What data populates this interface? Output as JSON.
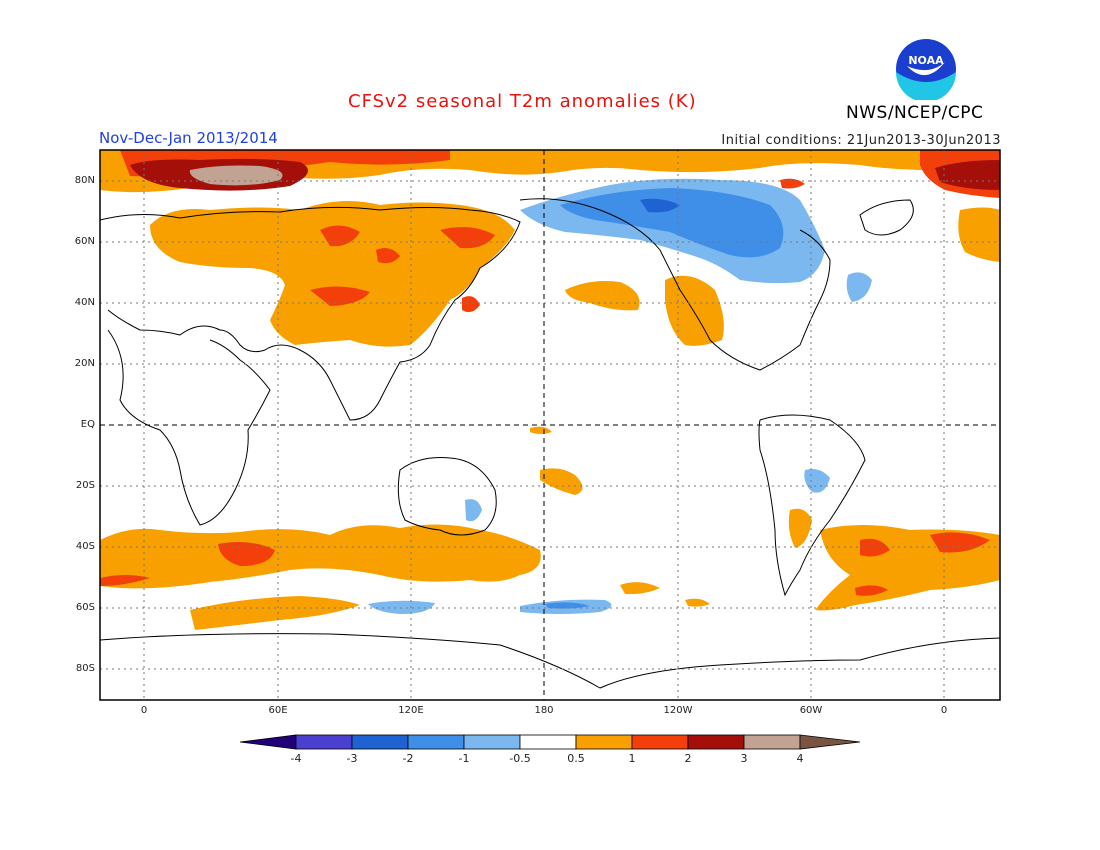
{
  "header": {
    "title": "CFSv2 seasonal T2m anomalies (K)",
    "period": "Nov-Dec-Jan 2013/2014",
    "initial_conditions": "Initial conditions: 21Jun2013-30Jun2013",
    "agency": "NWS/NCEP/CPC",
    "logo_text": "NOAA"
  },
  "map": {
    "lat_labels": [
      "80N",
      "60N",
      "40N",
      "20N",
      "EQ",
      "20S",
      "40S",
      "60S",
      "80S"
    ],
    "lon_labels": [
      "0",
      "60E",
      "120E",
      "180",
      "120W",
      "60W",
      "0"
    ]
  },
  "colorbar": {
    "labels": [
      "-4",
      "-3",
      "-2",
      "-1",
      "-0.5",
      "0.5",
      "1",
      "2",
      "3",
      "4"
    ],
    "colors": {
      "lt_-4": "#22007a",
      "-4_-3": "#4a3fcf",
      "-3_-2": "#1f62d2",
      "-2_-1": "#3f8ee8",
      "-1_-0.5": "#7cb8f0",
      "-0.5_0.5": "#ffffff",
      "0.5_1": "#f8a000",
      "1_2": "#f3400a",
      "2_3": "#a50f0a",
      "3_4": "#c2a393",
      "gt_4": "#7a5442"
    }
  }
}
